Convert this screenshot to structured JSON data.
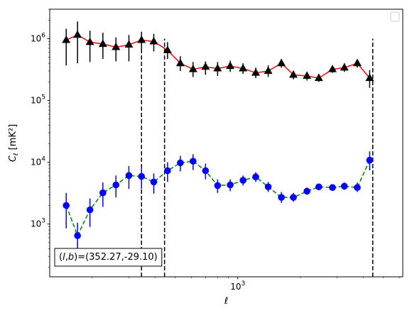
{
  "chart_data": {
    "type": "scatter",
    "xscale": "log",
    "yscale": "log",
    "xlabel": "ℓ",
    "ylabel_main": "C",
    "ylabel_sub": "ℓ",
    "ylabel_unit": "[mK²]",
    "xlim": [
      125,
      6200
    ],
    "ylim": [
      140,
      3000000
    ],
    "x_ticks": [
      {
        "value": 1000,
        "base": "10",
        "exp": "3"
      }
    ],
    "y_ticks": [
      {
        "value": 1000,
        "base": "10",
        "exp": "3"
      },
      {
        "value": 10000,
        "base": "10",
        "exp": "4"
      },
      {
        "value": 100000,
        "base": "10",
        "exp": "5"
      },
      {
        "value": 1000000,
        "base": "10",
        "exp": "6"
      }
    ],
    "legend": {
      "location": "upper right",
      "entries": []
    },
    "annotation": {
      "l_sym": "l",
      "b_sym": "b",
      "values": "=(352.27,-29.10)",
      "location": "lower left"
    },
    "vlines": [
      {
        "x": 345,
        "ymin": 140,
        "ymax": 1000000
      },
      {
        "x": 445,
        "ymin": 140,
        "ymax": 1000000
      },
      {
        "x": 4450,
        "ymin": 140,
        "ymax": 1000000
      }
    ],
    "series": [
      {
        "marker": "triangle",
        "color": "#000000",
        "line_color": "#ff0000",
        "line_style": "solid",
        "points": [
          {
            "x": 150,
            "y": 950000,
            "lo": 370000,
            "hi": 1450000
          },
          {
            "x": 170,
            "y": 1150000,
            "lo": 400000,
            "hi": 1900000
          },
          {
            "x": 195,
            "y": 880000,
            "lo": 420000,
            "hi": 1350000
          },
          {
            "x": 225,
            "y": 820000,
            "lo": 470000,
            "hi": 1250000
          },
          {
            "x": 260,
            "y": 730000,
            "lo": 430000,
            "hi": 1050000
          },
          {
            "x": 300,
            "y": 800000,
            "lo": 430000,
            "hi": 1150000
          },
          {
            "x": 345,
            "y": 950000,
            "lo": 620000,
            "hi": 1300000
          },
          {
            "x": 395,
            "y": 900000,
            "lo": 620000,
            "hi": 1200000
          },
          {
            "x": 460,
            "y": 650000,
            "lo": 470000,
            "hi": 880000
          },
          {
            "x": 530,
            "y": 400000,
            "lo": 300000,
            "hi": 520000
          },
          {
            "x": 610,
            "y": 320000,
            "lo": 240000,
            "hi": 420000
          },
          {
            "x": 700,
            "y": 350000,
            "lo": 260000,
            "hi": 430000
          },
          {
            "x": 800,
            "y": 330000,
            "lo": 250000,
            "hi": 420000
          },
          {
            "x": 920,
            "y": 360000,
            "lo": 290000,
            "hi": 440000
          },
          {
            "x": 1060,
            "y": 330000,
            "lo": 270000,
            "hi": 400000
          },
          {
            "x": 1220,
            "y": 280000,
            "lo": 230000,
            "hi": 340000
          },
          {
            "x": 1400,
            "y": 300000,
            "lo": 240000,
            "hi": 370000
          },
          {
            "x": 1620,
            "y": 400000,
            "lo": 340000,
            "hi": 470000
          },
          {
            "x": 1850,
            "y": 260000,
            "lo": 220000,
            "hi": 300000
          },
          {
            "x": 2150,
            "y": 250000,
            "lo": 210000,
            "hi": 290000
          },
          {
            "x": 2450,
            "y": 230000,
            "lo": 200000,
            "hi": 270000
          },
          {
            "x": 2850,
            "y": 320000,
            "lo": 280000,
            "hi": 360000
          },
          {
            "x": 3250,
            "y": 340000,
            "lo": 290000,
            "hi": 400000
          },
          {
            "x": 3750,
            "y": 400000,
            "lo": 340000,
            "hi": 460000
          },
          {
            "x": 4300,
            "y": 230000,
            "lo": 160000,
            "hi": 310000
          }
        ]
      },
      {
        "marker": "circle",
        "color": "#0000ff",
        "line_color": "#008000",
        "line_style": "dashed",
        "points": [
          {
            "x": 150,
            "y": 2000,
            "lo": 850,
            "hi": 3200
          },
          {
            "x": 170,
            "y": 650,
            "lo": 230,
            "hi": 1050
          },
          {
            "x": 195,
            "y": 1700,
            "lo": 900,
            "hi": 2600
          },
          {
            "x": 225,
            "y": 3200,
            "lo": 1900,
            "hi": 4700
          },
          {
            "x": 260,
            "y": 4300,
            "lo": 2700,
            "hi": 6100
          },
          {
            "x": 300,
            "y": 6100,
            "lo": 3700,
            "hi": 8700
          },
          {
            "x": 345,
            "y": 5900,
            "lo": 3700,
            "hi": 8200
          },
          {
            "x": 395,
            "y": 4800,
            "lo": 3100,
            "hi": 6600
          },
          {
            "x": 460,
            "y": 7300,
            "lo": 4800,
            "hi": 10000
          },
          {
            "x": 530,
            "y": 9800,
            "lo": 7100,
            "hi": 12700
          },
          {
            "x": 610,
            "y": 10400,
            "lo": 7500,
            "hi": 13500
          },
          {
            "x": 700,
            "y": 7300,
            "lo": 5300,
            "hi": 9500
          },
          {
            "x": 800,
            "y": 4200,
            "lo": 3200,
            "hi": 5300
          },
          {
            "x": 920,
            "y": 4300,
            "lo": 3400,
            "hi": 5300
          },
          {
            "x": 1060,
            "y": 5100,
            "lo": 4200,
            "hi": 6100
          },
          {
            "x": 1220,
            "y": 5800,
            "lo": 4800,
            "hi": 6900
          },
          {
            "x": 1400,
            "y": 4000,
            "lo": 3300,
            "hi": 4800
          },
          {
            "x": 1620,
            "y": 2700,
            "lo": 2200,
            "hi": 3300
          },
          {
            "x": 1850,
            "y": 2700,
            "lo": 2300,
            "hi": 3200
          },
          {
            "x": 2150,
            "y": 3400,
            "lo": 3000,
            "hi": 3900
          },
          {
            "x": 2450,
            "y": 4000,
            "lo": 3600,
            "hi": 4500
          },
          {
            "x": 2850,
            "y": 3900,
            "lo": 3500,
            "hi": 4300
          },
          {
            "x": 3250,
            "y": 4100,
            "lo": 3600,
            "hi": 4700
          },
          {
            "x": 3750,
            "y": 3900,
            "lo": 3300,
            "hi": 4700
          },
          {
            "x": 4300,
            "y": 10800,
            "lo": 7400,
            "hi": 15000
          }
        ]
      }
    ]
  }
}
